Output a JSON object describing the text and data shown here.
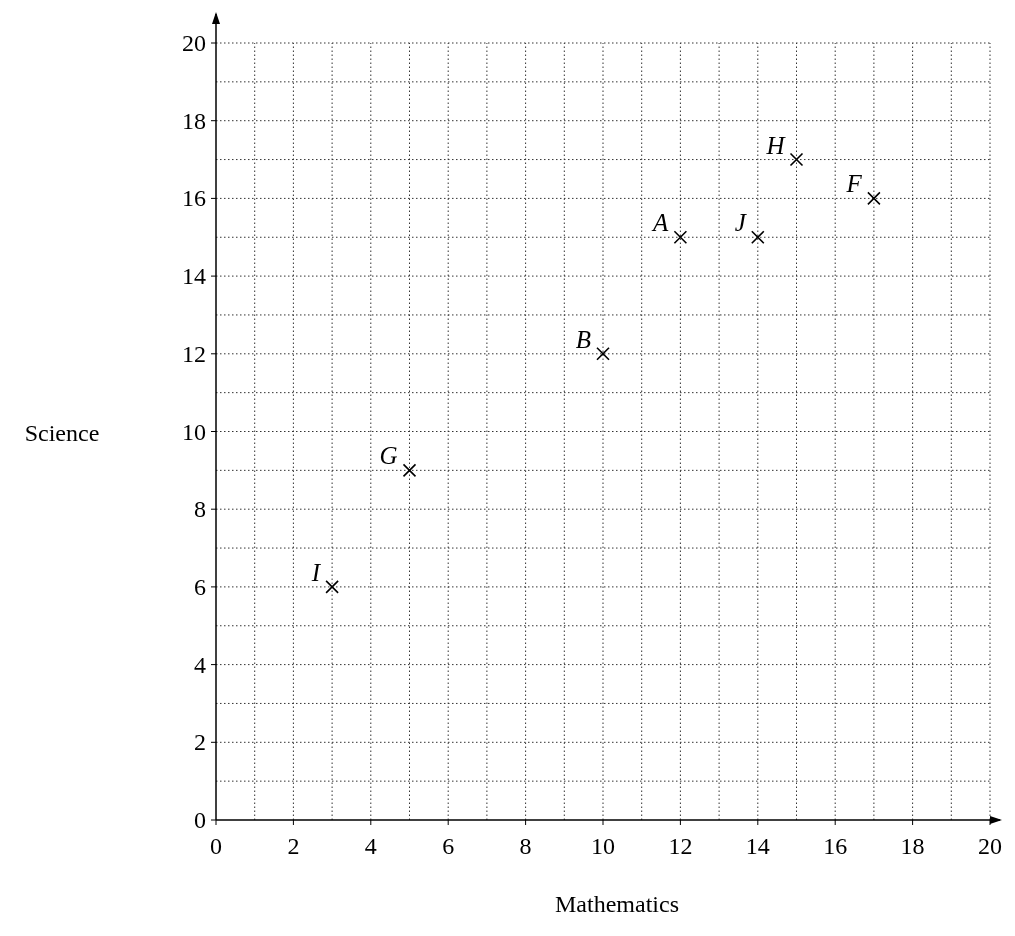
{
  "chart_data": {
    "type": "scatter",
    "xlabel": "Mathematics",
    "ylabel": "Science",
    "x": [
      3,
      5,
      10,
      12,
      14,
      15,
      17
    ],
    "values": [
      6,
      9,
      12,
      15,
      15,
      17,
      16
    ],
    "color": "#000000",
    "marker": "cross",
    "grid": true,
    "xlim": [
      0,
      20
    ],
    "ylim": [
      0,
      20
    ],
    "xticks": [
      0,
      {
        "value": 1,
        "label": null
      },
      2,
      {
        "value": 3,
        "label": null
      },
      4,
      {
        "value": 5,
        "label": null
      },
      6,
      {
        "value": 7,
        "label": null
      },
      8,
      {
        "value": 9,
        "label": null
      },
      10,
      {
        "value": 11,
        "label": null
      },
      12,
      {
        "value": 13,
        "label": null
      },
      14,
      {
        "value": 15,
        "label": null
      },
      16,
      {
        "value": 17,
        "label": null
      },
      18,
      {
        "value": 19,
        "label": null
      },
      20
    ],
    "yticks": [
      0,
      {
        "value": 1,
        "label": null
      },
      2,
      {
        "value": 3,
        "label": null
      },
      4,
      {
        "value": 5,
        "label": null
      },
      6,
      {
        "value": 7,
        "label": null
      },
      8,
      {
        "value": 9,
        "label": null
      },
      10,
      {
        "value": 11,
        "label": null
      },
      12,
      {
        "value": 13,
        "label": null
      },
      14,
      {
        "value": 15,
        "label": null
      },
      16,
      {
        "value": 17,
        "label": null
      },
      18,
      {
        "value": 19,
        "label": null
      },
      20
    ],
    "annotations": [
      {
        "text": "I",
        "x": 3,
        "y": 6
      },
      {
        "text": "G",
        "x": 5,
        "y": 9
      },
      {
        "text": "B",
        "x": 10,
        "y": 12
      },
      {
        "text": "A",
        "x": 12,
        "y": 15
      },
      {
        "text": "J",
        "x": 14,
        "y": 15
      },
      {
        "text": "H",
        "x": 15,
        "y": 17
      },
      {
        "text": "F",
        "x": 17,
        "y": 16
      }
    ]
  }
}
